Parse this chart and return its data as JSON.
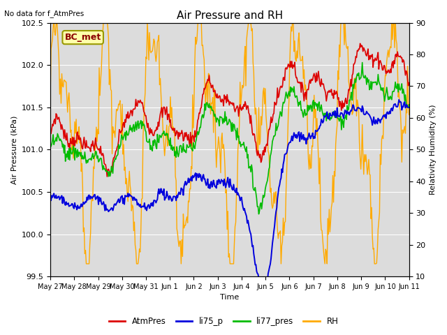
{
  "title": "Air Pressure and RH",
  "top_left_note": "No data for f_AtmPres",
  "station_label": "BC_met",
  "ylabel_left": "Air Pressure (kPa)",
  "ylabel_right": "Relativity Humidity (%)",
  "xlabel": "Time",
  "ylim_left": [
    99.5,
    102.5
  ],
  "ylim_right": [
    10,
    90
  ],
  "bg_color": "#dcdcdc",
  "fig_color": "#ffffff",
  "grid_color": "#ffffff",
  "colors": {
    "AtmPres": "#dd0000",
    "li75_p": "#0000dd",
    "li77_pres": "#00bb00",
    "RH": "#ffaa00"
  },
  "legend_labels": [
    "AtmPres",
    "li75_p",
    "li77_pres",
    "RH"
  ],
  "xtick_labels": [
    "May 27",
    "May 28",
    "May 29",
    "May 30",
    "May 31",
    "Jun 1",
    "Jun 2",
    "Jun 3",
    "Jun 4",
    "Jun 5",
    "Jun 6",
    "Jun 7",
    "Jun 8",
    "Jun 9",
    "Jun 10",
    "Jun 11"
  ],
  "xtick_positions": [
    0,
    1,
    2,
    3,
    4,
    5,
    6,
    7,
    8,
    9,
    10,
    11,
    12,
    13,
    14,
    15
  ],
  "yticks_left": [
    99.5,
    100.0,
    100.5,
    101.0,
    101.5,
    102.0,
    102.5
  ],
  "yticks_right": [
    10,
    20,
    30,
    40,
    50,
    60,
    70,
    80,
    90
  ]
}
